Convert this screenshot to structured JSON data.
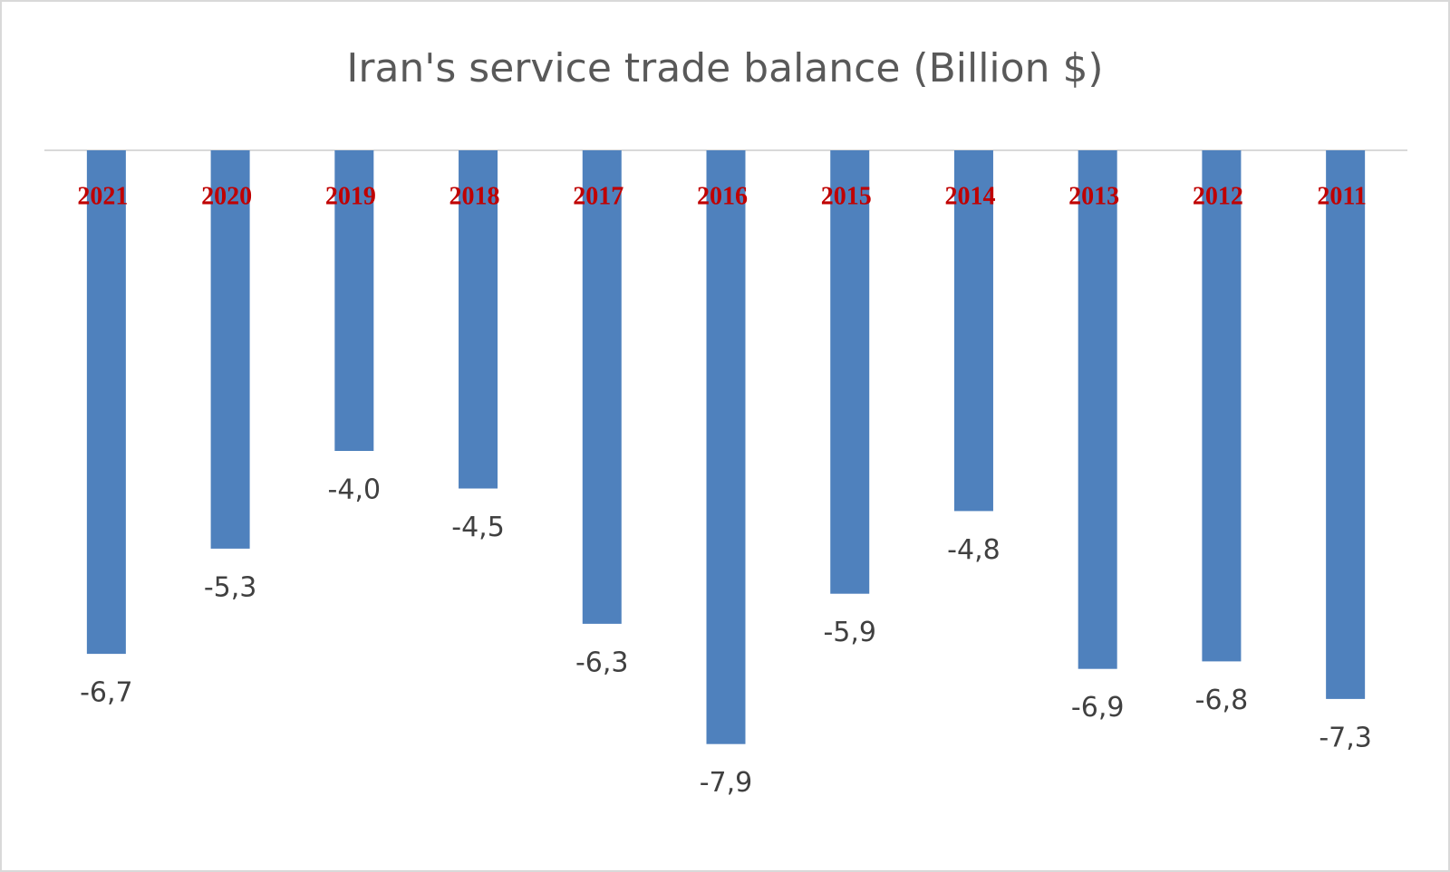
{
  "chart_data": {
    "type": "bar",
    "title": "Iran's service trade balance (Billion $)",
    "categories": [
      "2021",
      "2020",
      "2019",
      "2018",
      "2017",
      "2016",
      "2015",
      "2014",
      "2013",
      "2012",
      "2011"
    ],
    "values": [
      -6.7,
      -5.3,
      -4.0,
      -4.5,
      -6.3,
      -7.9,
      -5.9,
      -4.8,
      -6.9,
      -6.8,
      -7.3
    ],
    "value_labels": [
      "-6,7",
      "-5,3",
      "-4,0",
      "-4,5",
      "-6,3",
      "-7,9",
      "-5,9",
      "-4,8",
      "-6,9",
      "-6,8",
      "-7,3"
    ],
    "color": "#4f81bd",
    "category_label_color": "#c00000"
  }
}
